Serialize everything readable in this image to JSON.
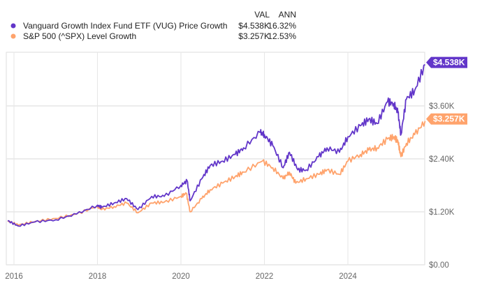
{
  "chart_data": {
    "type": "line",
    "title": "",
    "xlabel": "",
    "ylabel": "",
    "x_ticks": [
      "2016",
      "2018",
      "2020",
      "2022",
      "2024"
    ],
    "y_ticks": [
      "$0.00",
      "$1.20K",
      "$2.40K",
      "$3.60K"
    ],
    "y_tick_values": [
      0,
      1.2,
      2.4,
      3.6
    ],
    "xlim": [
      2015.8,
      2025.85
    ],
    "ylim": [
      0,
      4.8
    ],
    "grid": true,
    "legend_placement": "top-left",
    "legend_headers": {
      "val": "VAL",
      "ann": "ANN"
    },
    "series": [
      {
        "name": "Vanguard Growth Index Fund ETF (VUG) Price Growth",
        "val": "$4.538K",
        "ann": "16.32%",
        "end_label": "$4.538K",
        "color": "#6236c9",
        "x": [
          2015.85,
          2016.1,
          2016.5,
          2017.0,
          2017.5,
          2018.0,
          2018.1,
          2018.4,
          2018.7,
          2018.97,
          2019.3,
          2019.6,
          2020.0,
          2020.15,
          2020.22,
          2020.5,
          2020.7,
          2021.0,
          2021.3,
          2021.5,
          2021.9,
          2022.0,
          2022.2,
          2022.45,
          2022.6,
          2022.8,
          2023.0,
          2023.3,
          2023.5,
          2023.8,
          2024.0,
          2024.3,
          2024.5,
          2024.7,
          2024.95,
          2025.1,
          2025.2,
          2025.27,
          2025.4,
          2025.6,
          2025.85
        ],
        "y": [
          1.0,
          0.88,
          0.97,
          1.02,
          1.15,
          1.35,
          1.3,
          1.4,
          1.5,
          1.25,
          1.55,
          1.55,
          1.8,
          1.9,
          1.45,
          1.95,
          2.25,
          2.35,
          2.5,
          2.65,
          3.0,
          2.95,
          2.7,
          2.2,
          2.55,
          2.15,
          2.15,
          2.45,
          2.65,
          2.55,
          2.9,
          3.15,
          3.3,
          3.2,
          3.7,
          3.65,
          3.45,
          2.95,
          3.75,
          3.95,
          4.538
        ]
      },
      {
        "name": "S&P 500 (^SPX) Level Growth",
        "val": "$3.257K",
        "ann": "12.53%",
        "end_label": "$3.257K",
        "color": "#ffa36c",
        "x": [
          2015.85,
          2016.1,
          2016.5,
          2017.0,
          2017.5,
          2018.0,
          2018.1,
          2018.4,
          2018.7,
          2018.97,
          2019.3,
          2019.6,
          2020.0,
          2020.13,
          2020.22,
          2020.5,
          2020.7,
          2021.0,
          2021.3,
          2021.5,
          2021.95,
          2022.2,
          2022.45,
          2022.6,
          2022.75,
          2023.0,
          2023.3,
          2023.5,
          2023.8,
          2024.0,
          2024.3,
          2024.5,
          2024.7,
          2024.95,
          2025.1,
          2025.2,
          2025.27,
          2025.4,
          2025.6,
          2025.85
        ],
        "y": [
          1.0,
          0.9,
          0.98,
          1.05,
          1.15,
          1.33,
          1.25,
          1.32,
          1.4,
          1.18,
          1.4,
          1.42,
          1.55,
          1.62,
          1.2,
          1.5,
          1.7,
          1.85,
          2.0,
          2.1,
          2.35,
          2.2,
          1.95,
          2.1,
          1.85,
          1.95,
          2.05,
          2.15,
          2.05,
          2.35,
          2.5,
          2.6,
          2.65,
          2.85,
          2.9,
          2.8,
          2.45,
          2.75,
          2.95,
          3.257
        ]
      }
    ]
  }
}
